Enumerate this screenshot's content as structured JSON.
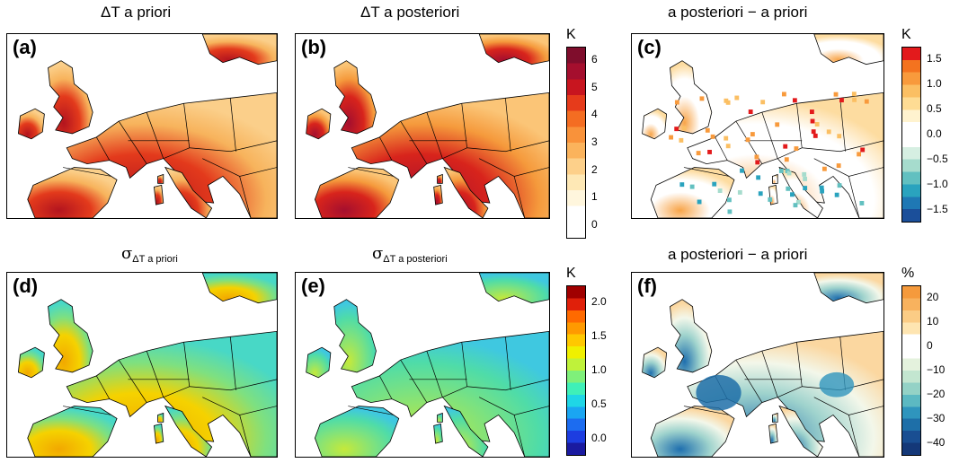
{
  "titles": {
    "a": "ΔT a priori",
    "b": "ΔT a posteriori",
    "c": "a posteriori − a priori",
    "d_sym": "σ",
    "d_sub": "ΔT a priori",
    "e_sym": "σ",
    "e_sub": "ΔT a posteriori",
    "f": "a posteriori − a priori"
  },
  "panel_labels": [
    "(a)",
    "(b)",
    "(c)",
    "(d)",
    "(e)",
    "(f)"
  ],
  "colorbars": {
    "temp": {
      "unit": "K",
      "ticks": [
        "6",
        "5",
        "4",
        "3",
        "2",
        "1",
        "0"
      ],
      "colors": [
        "#7f0d2c",
        "#a50f2e",
        "#c8151f",
        "#e63b1b",
        "#f46d22",
        "#f9923a",
        "#fbb35c",
        "#fdd08a",
        "#fee8b5",
        "#fff6dd",
        "#ffffff",
        "#ffffff"
      ]
    },
    "diff": {
      "unit": "K",
      "ticks": [
        "1.5",
        "1.0",
        "0.5",
        "0.0",
        "−0.5",
        "−1.0",
        "−1.5"
      ],
      "colors": [
        "#e31a1c",
        "#f4731f",
        "#f89a3c",
        "#fbbf63",
        "#fedc94",
        "#fff3cf",
        "#ffffff",
        "#ffffff",
        "#d6efe2",
        "#a6dccd",
        "#62c0c0",
        "#2aa3be",
        "#1f78b4",
        "#1b4f9a"
      ]
    },
    "sigma": {
      "unit": "K",
      "ticks": [
        "2.0",
        "1.5",
        "1.0",
        "0.5",
        "0.0"
      ],
      "colors": [
        "#a00000",
        "#e0200a",
        "#ff6a00",
        "#ff9a00",
        "#ffc800",
        "#f0f000",
        "#bff23a",
        "#7ff07a",
        "#3ff0b8",
        "#1fd6e6",
        "#1aa6f2",
        "#1c6cf0",
        "#1d3de0",
        "#1a1aa0"
      ]
    },
    "pct": {
      "unit": "%",
      "ticks": [
        "20",
        "10",
        "0",
        "−10",
        "−20",
        "−30",
        "−40"
      ],
      "colors": [
        "#f59a3c",
        "#f8b25e",
        "#fbcc85",
        "#fee5b1",
        "#ffffff",
        "#ffffff",
        "#e4f2dd",
        "#c3e6d0",
        "#94d2c6",
        "#5cb9c2",
        "#2f95bd",
        "#1e6fa8",
        "#194e92",
        "#143878"
      ]
    }
  },
  "chart_data": [
    {
      "type": "heatmap",
      "title": "ΔT a priori",
      "panel": "(a)",
      "colorbar_unit": "K",
      "colorbar_range": [
        0,
        6
      ],
      "colorbar_ticks": [
        0,
        1,
        2,
        3,
        4,
        5,
        6
      ]
    },
    {
      "type": "heatmap",
      "title": "ΔT a posteriori",
      "panel": "(b)",
      "colorbar_unit": "K",
      "colorbar_range": [
        0,
        6
      ],
      "colorbar_ticks": [
        0,
        1,
        2,
        3,
        4,
        5,
        6
      ]
    },
    {
      "type": "heatmap",
      "title": "a posteriori − a priori",
      "panel": "(c)",
      "colorbar_unit": "K",
      "colorbar_range": [
        -1.75,
        1.75
      ],
      "colorbar_ticks": [
        -1.5,
        -1.0,
        -0.5,
        0.0,
        0.5,
        1.0,
        1.5
      ]
    },
    {
      "type": "heatmap",
      "title": "σ ΔT a priori",
      "panel": "(d)",
      "colorbar_unit": "K",
      "colorbar_range": [
        0.0,
        2.2
      ],
      "colorbar_ticks": [
        0.0,
        0.5,
        1.0,
        1.5,
        2.0
      ]
    },
    {
      "type": "heatmap",
      "title": "σ ΔT a posteriori",
      "panel": "(e)",
      "colorbar_unit": "K",
      "colorbar_range": [
        0.0,
        2.2
      ],
      "colorbar_ticks": [
        0.0,
        0.5,
        1.0,
        1.5,
        2.0
      ]
    },
    {
      "type": "heatmap",
      "title": "a posteriori − a priori",
      "panel": "(f)",
      "colorbar_unit": "%",
      "colorbar_range": [
        -40,
        20
      ],
      "colorbar_ticks": [
        -40,
        -30,
        -20,
        -10,
        0,
        10,
        20
      ]
    }
  ],
  "map_fills": {
    "a": {
      "land": "#f7b35c",
      "south": "#e33a1c",
      "hot": "#b3141e",
      "north": "#fbcf8a"
    },
    "b": {
      "land": "#f59a3c",
      "south": "#d8241c",
      "hot": "#a50f2e",
      "north": "#fbc577"
    },
    "c": {
      "land": "#ffffff",
      "south": "#ffffff",
      "hot": "#f8a448",
      "north": "#fddca0"
    },
    "d": {
      "land": "#7fe07f",
      "south": "#f5d200",
      "hot": "#f2a800",
      "north": "#48d8c6"
    },
    "e": {
      "land": "#4fdca8",
      "south": "#7ee27e",
      "hot": "#c5e93a",
      "north": "#3fc8e0"
    },
    "f": {
      "land": "#f3f7ea",
      "south": "#9fd3cd",
      "hot": "#1f6fae",
      "north": "#fbd7a0"
    }
  }
}
